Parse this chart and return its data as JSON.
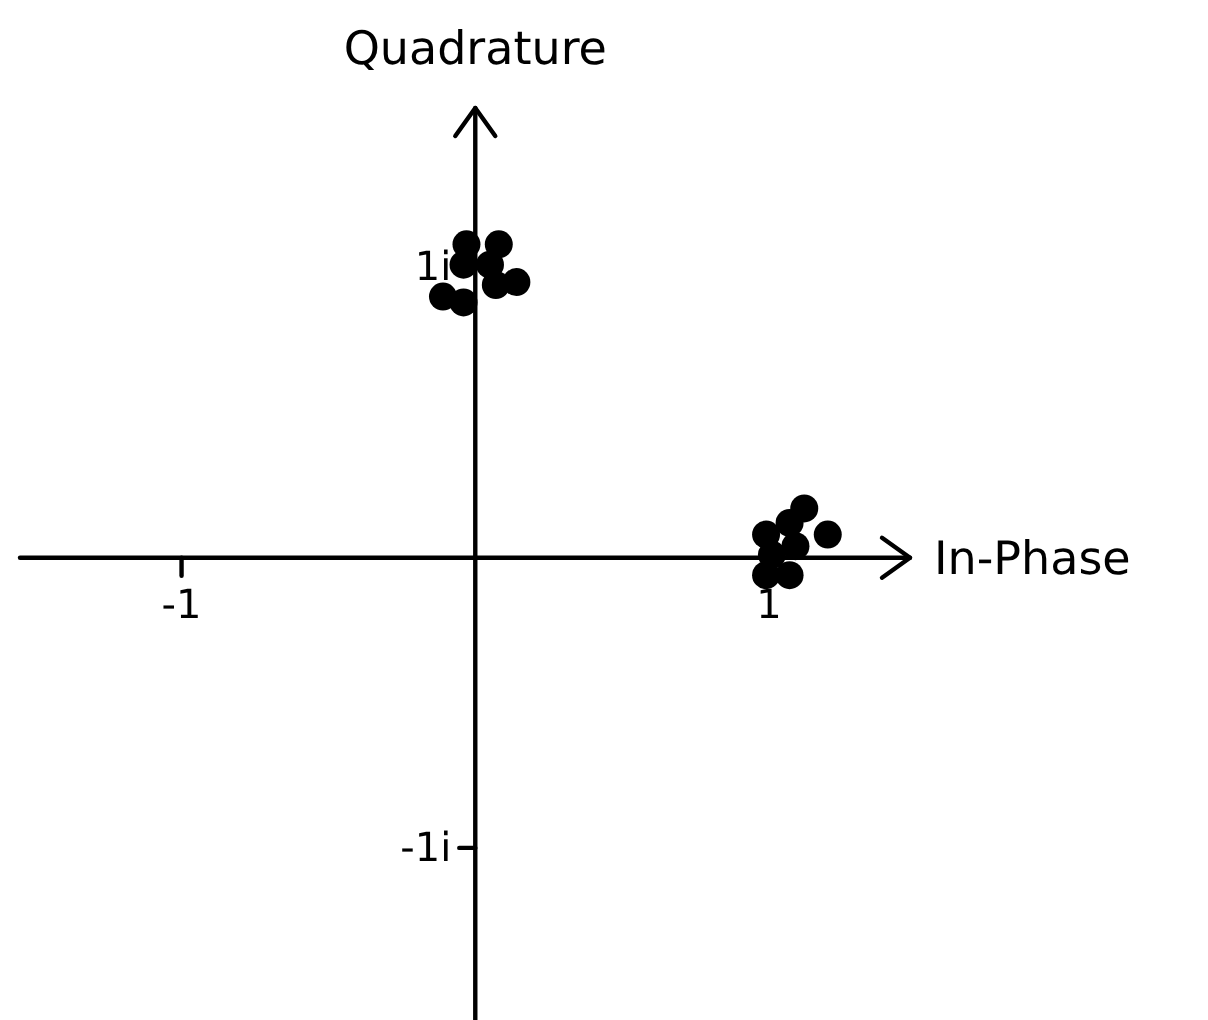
{
  "chart_data": {
    "type": "scatter",
    "xlabel": "In-Phase",
    "ylabel": "Quadrature",
    "x": [
      -0.03,
      0.08,
      -0.04,
      0.05,
      0.14,
      0.07,
      -0.11,
      -0.04,
      1.12,
      1.07,
      1.2,
      0.99,
      1.09,
      1.01,
      0.99,
      1.07
    ],
    "values": [
      1.08,
      1.08,
      1.01,
      1.01,
      0.95,
      0.94,
      0.9,
      0.88,
      0.17,
      0.12,
      0.08,
      0.08,
      0.04,
      0.01,
      -0.06,
      -0.06
    ],
    "color": "#000000",
    "marker": "circle",
    "xlim": [
      -1.55,
      1.48
    ],
    "ylim": [
      -1.6,
      1.55
    ],
    "xticks": [
      -1,
      1
    ],
    "yticks": [
      {
        "value": 1,
        "label": "1i"
      },
      {
        "value": -1,
        "label": "-1i"
      }
    ]
  }
}
